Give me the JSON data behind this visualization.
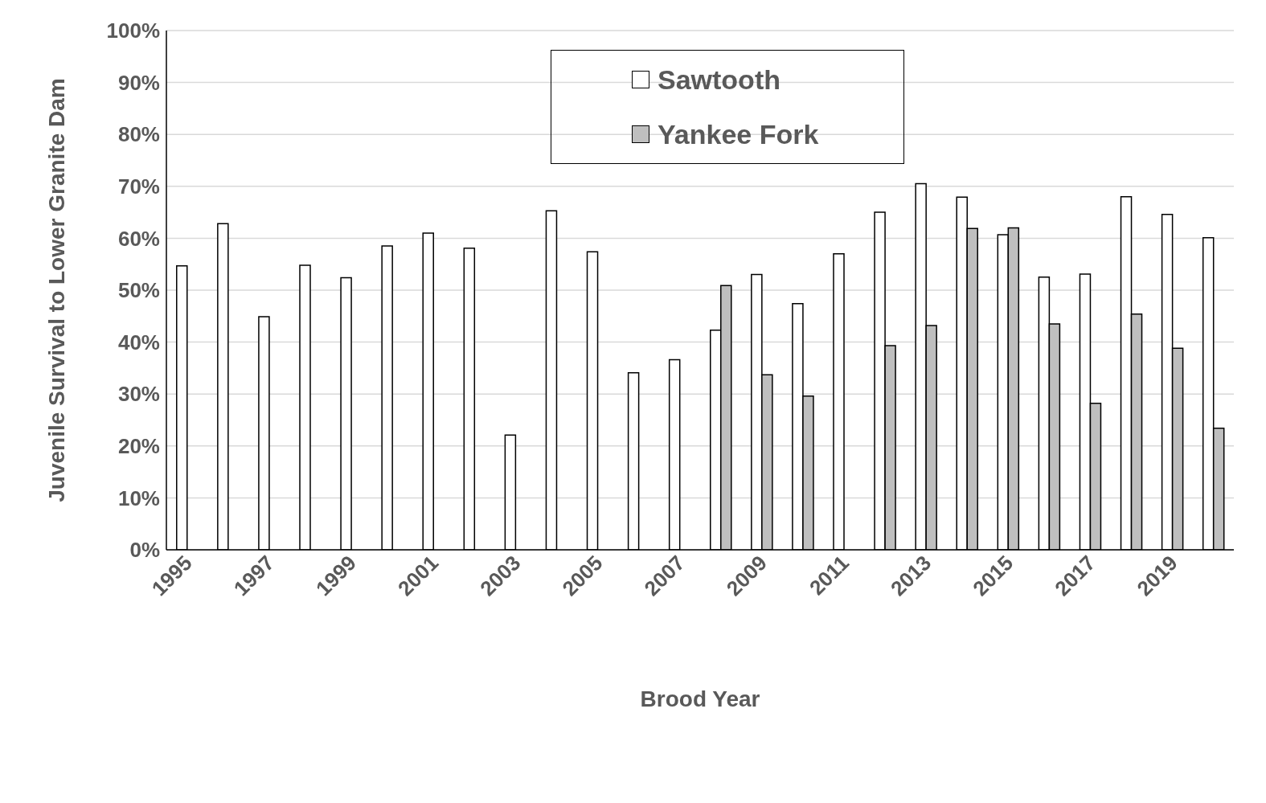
{
  "chart_data": {
    "type": "bar",
    "xlabel": "Brood Year",
    "ylabel": "Juvenile Survival to Lower Granite Dam",
    "categories": [
      "1995",
      null,
      "1997",
      null,
      "1999",
      null,
      "2001",
      null,
      "2003",
      null,
      "2005",
      null,
      "2007",
      null,
      "2009",
      null,
      "2011",
      null,
      "2013",
      null,
      "2015",
      null,
      "2017",
      null,
      "2019",
      null
    ],
    "series": [
      {
        "name": "Sawtooth",
        "color": "#ffffff",
        "values": [
          54.7,
          62.8,
          44.9,
          54.8,
          52.4,
          58.5,
          61.0,
          58.1,
          22.1,
          65.3,
          57.4,
          34.1,
          36.6,
          42.3,
          53.0,
          47.4,
          57.0,
          65.0,
          70.5,
          67.9,
          60.7,
          52.5,
          53.1,
          68.0,
          64.6,
          60.1
        ]
      },
      {
        "name": "Yankee Fork",
        "color": "#bfbfbf",
        "values": [
          null,
          null,
          null,
          null,
          null,
          null,
          null,
          null,
          null,
          null,
          null,
          null,
          null,
          50.9,
          33.7,
          29.6,
          null,
          39.3,
          43.2,
          61.9,
          62.0,
          43.5,
          28.2,
          45.4,
          38.8,
          23.4
        ]
      }
    ],
    "ylim": [
      0,
      100
    ],
    "yticks": [
      {
        "value": 0,
        "label": "0%"
      },
      {
        "value": 10,
        "label": "10%"
      },
      {
        "value": 20,
        "label": "20%"
      },
      {
        "value": 30,
        "label": "30%"
      },
      {
        "value": 40,
        "label": "40%"
      },
      {
        "value": 50,
        "label": "50%"
      },
      {
        "value": 60,
        "label": "60%"
      },
      {
        "value": 70,
        "label": "70%"
      },
      {
        "value": 80,
        "label": "80%"
      },
      {
        "value": 90,
        "label": "90%"
      },
      {
        "value": 100,
        "label": "100%"
      }
    ],
    "grid": "y",
    "legend": "top"
  }
}
